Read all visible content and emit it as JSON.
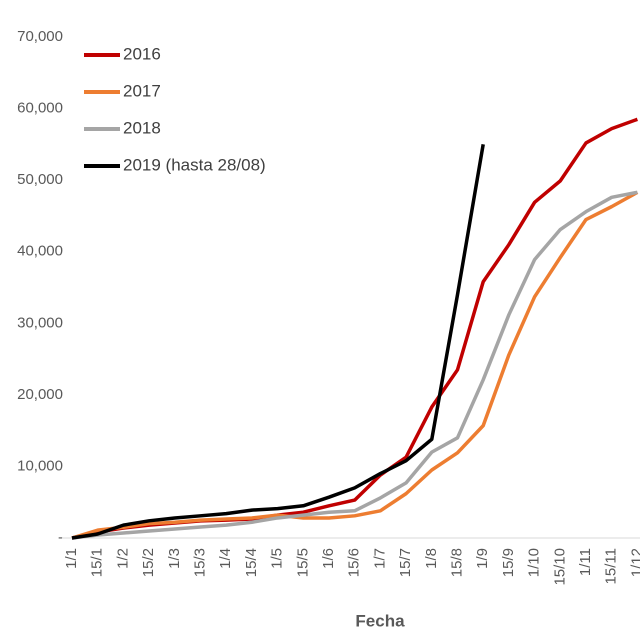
{
  "chart_data": {
    "type": "line",
    "x_label": "Fecha",
    "categories": [
      "1/1",
      "15/1",
      "1/2",
      "15/2",
      "1/3",
      "15/3",
      "1/4",
      "15/4",
      "1/5",
      "15/5",
      "1/6",
      "15/6",
      "1/7",
      "15/7",
      "1/8",
      "15/8",
      "1/9",
      "15/9",
      "1/10",
      "15/10",
      "1/11",
      "15/11",
      "1/12"
    ],
    "series": [
      {
        "name": "2016",
        "color": "#c00000",
        "values": [
          0,
          840,
          1400,
          1800,
          2100,
          2400,
          2500,
          2650,
          3200,
          3600,
          4500,
          5300,
          8800,
          11300,
          18300,
          23500,
          35800,
          41000,
          46900,
          49900,
          55200,
          57200,
          58500
        ]
      },
      {
        "name": "2017",
        "color": "#ed7d31",
        "values": [
          0,
          1100,
          1500,
          2000,
          2200,
          2500,
          2650,
          2800,
          3200,
          2800,
          2800,
          3100,
          3800,
          6200,
          9500,
          11900,
          15700,
          25600,
          33700,
          39200,
          44500,
          46300,
          48300
        ]
      },
      {
        "name": "2018",
        "color": "#a5a5a5",
        "values": [
          0,
          420,
          700,
          980,
          1260,
          1540,
          1800,
          2200,
          2800,
          3200,
          3600,
          3800,
          5600,
          7700,
          12000,
          14000,
          22100,
          31200,
          38900,
          43100,
          45600,
          47600,
          48300
        ]
      },
      {
        "name": "2019 (hasta 28/08)",
        "color": "#000000",
        "values": [
          0,
          560,
          1800,
          2400,
          2800,
          3100,
          3400,
          3900,
          4100,
          4500,
          5700,
          7000,
          9000,
          10800,
          13800,
          34000,
          55000,
          null,
          null,
          null,
          null,
          null,
          null
        ]
      }
    ],
    "ylim": [
      0,
      70000
    ],
    "yticks": [
      {
        "value": 0,
        "label": "-"
      },
      {
        "value": 10000,
        "label": "10,000"
      },
      {
        "value": 20000,
        "label": "20,000"
      },
      {
        "value": 30000,
        "label": "30,000"
      },
      {
        "value": 40000,
        "label": "40,000"
      },
      {
        "value": 50000,
        "label": "50,000"
      },
      {
        "value": 60000,
        "label": "60,000"
      },
      {
        "value": 70000,
        "label": "70,000"
      }
    ],
    "legend": "upper left"
  }
}
